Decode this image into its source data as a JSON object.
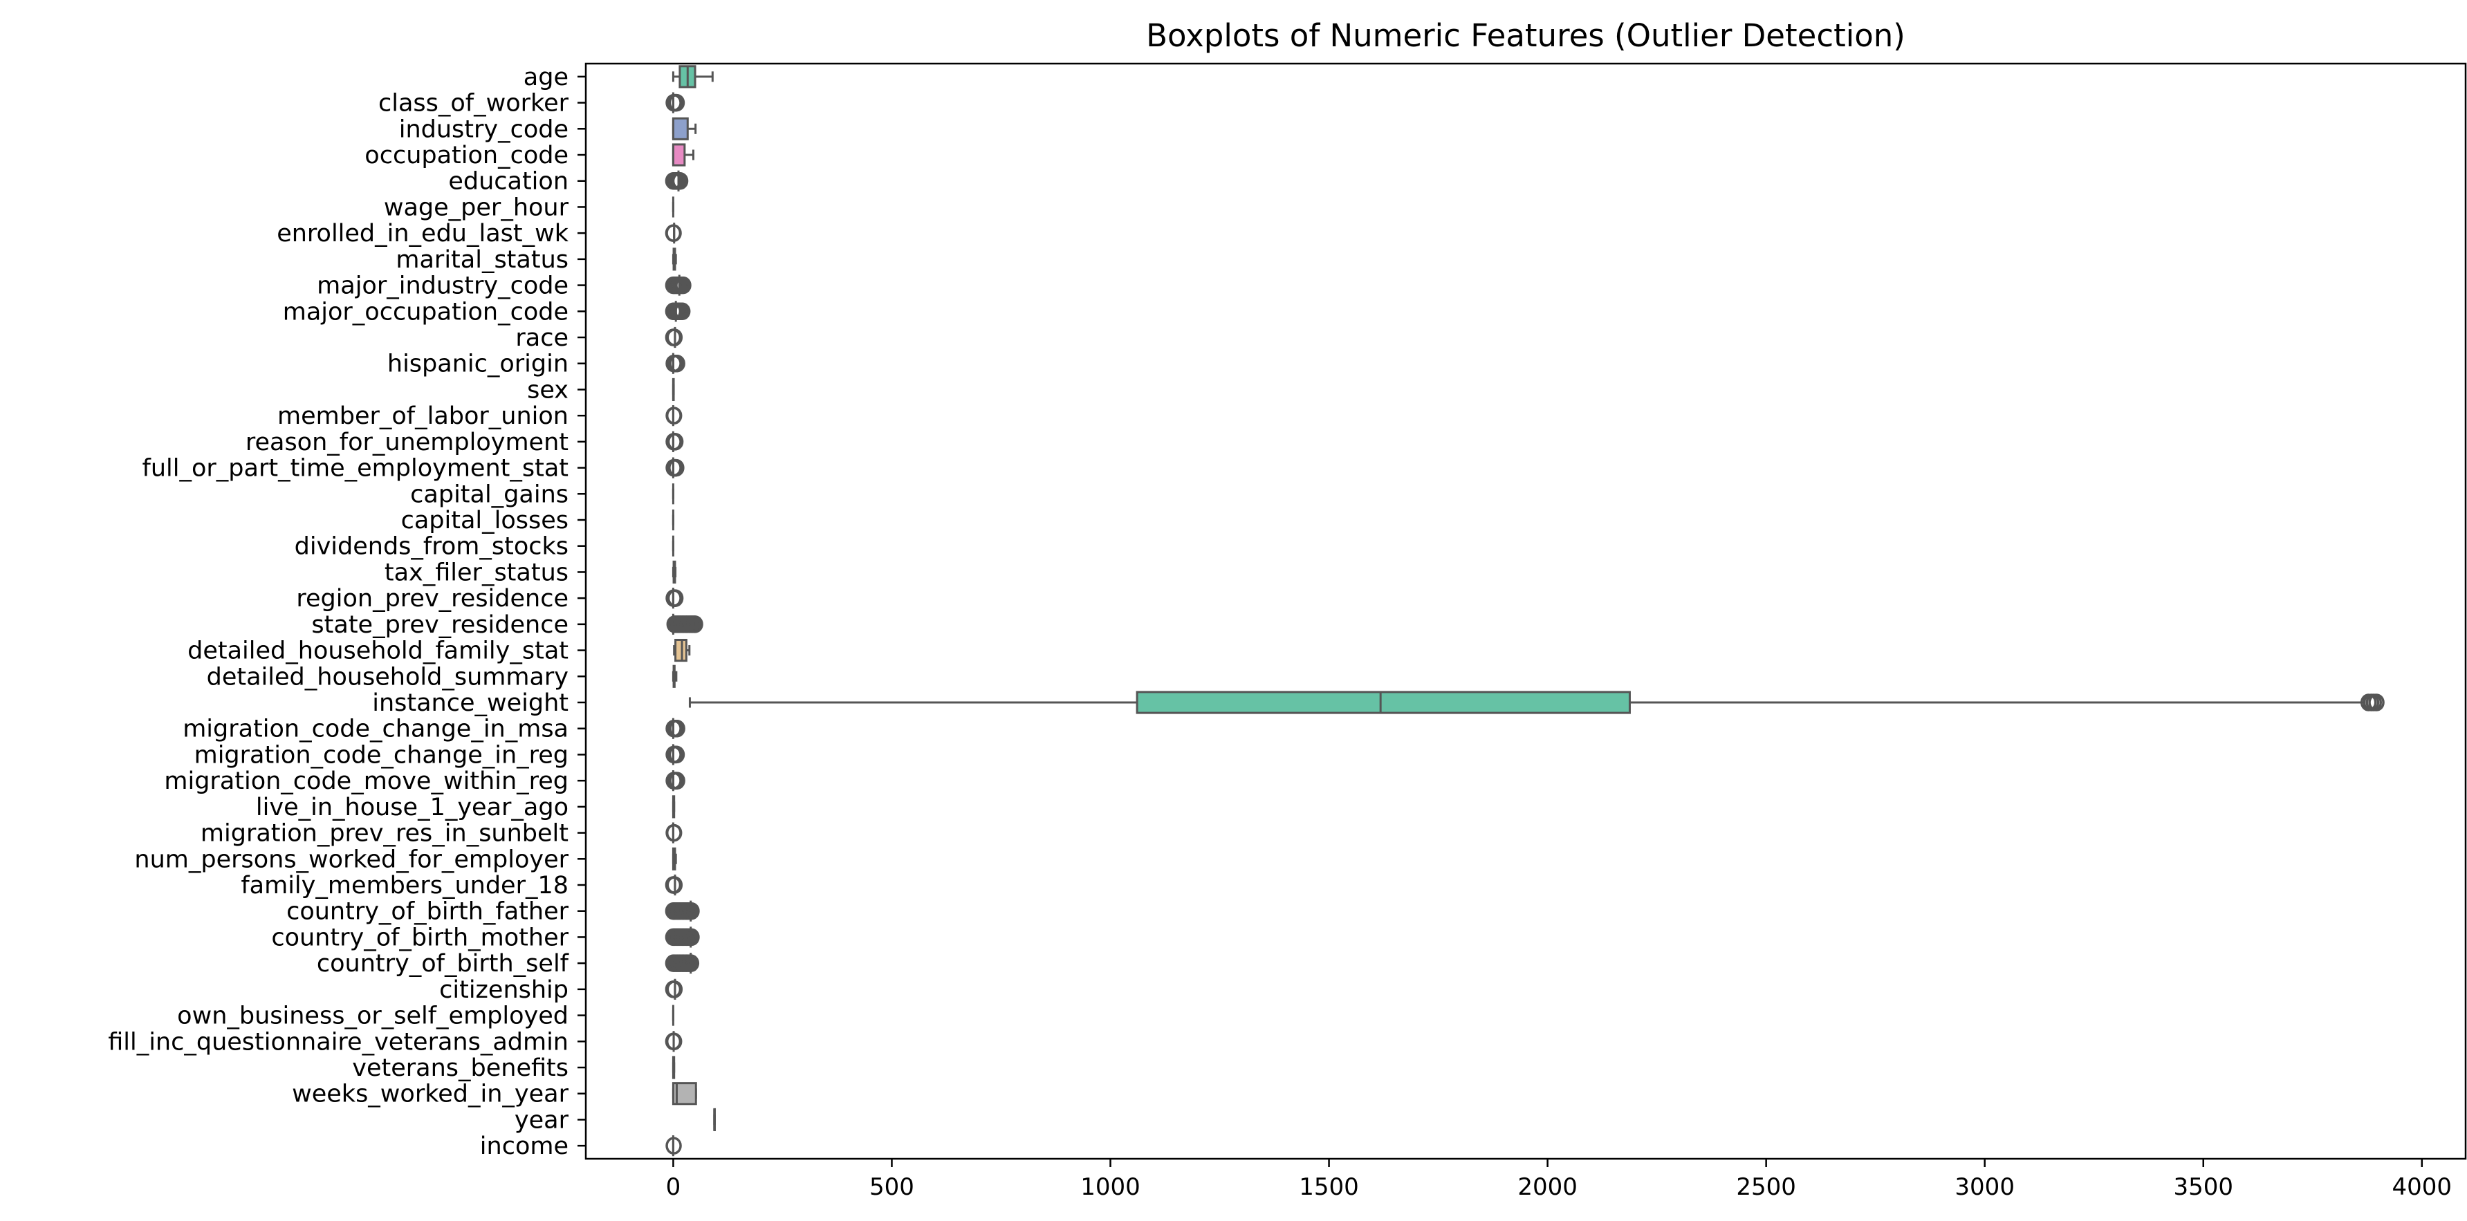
{
  "chart_data": {
    "type": "boxplot",
    "orientation": "horizontal",
    "title": "Boxplots of Numeric Features (Outlier Detection)",
    "xlabel": "",
    "ylabel": "",
    "xlim": [
      -200,
      4100
    ],
    "xticks": [
      0,
      500,
      1000,
      1500,
      2000,
      2500,
      3000,
      3500,
      4000
    ],
    "grid": false,
    "legend": "none",
    "palette": [
      "#66c2a5",
      "#fc8d62",
      "#8da0cb",
      "#e78ac3",
      "#a6d854",
      "#ffd92f",
      "#e5c494",
      "#b3b3b3"
    ],
    "outlier_color": "#555555",
    "series": [
      {
        "name": "age",
        "min": 0,
        "q1": 15,
        "median": 33,
        "q3": 50,
        "max": 90,
        "outliers": []
      },
      {
        "name": "class_of_worker",
        "min": 0,
        "q1": 0,
        "median": 0,
        "q3": 0,
        "max": 0,
        "outliers": [
          1,
          2,
          3,
          4,
          5,
          6,
          7,
          8
        ]
      },
      {
        "name": "industry_code",
        "min": 0,
        "q1": 0,
        "median": 0,
        "q3": 33,
        "max": 51,
        "outliers": []
      },
      {
        "name": "occupation_code",
        "min": 0,
        "q1": 0,
        "median": 0,
        "q3": 26,
        "max": 46,
        "outliers": []
      },
      {
        "name": "education",
        "min": 12,
        "q1": 12,
        "median": 12,
        "q3": 12,
        "max": 12,
        "outliers": [
          0,
          2,
          4,
          6,
          8,
          10,
          14,
          16
        ]
      },
      {
        "name": "wage_per_hour",
        "min": 0,
        "q1": 0,
        "median": 0,
        "q3": 0,
        "max": 0,
        "outliers": []
      },
      {
        "name": "enrolled_in_edu_last_wk",
        "min": 2,
        "q1": 2,
        "median": 2,
        "q3": 2,
        "max": 2,
        "outliers": [
          0,
          1
        ]
      },
      {
        "name": "marital_status",
        "min": 0,
        "q1": 1,
        "median": 2,
        "q3": 4,
        "max": 6,
        "outliers": []
      },
      {
        "name": "major_industry_code",
        "min": 14,
        "q1": 14,
        "median": 14,
        "q3": 14,
        "max": 14,
        "outliers": [
          0,
          3,
          6,
          9,
          12,
          17,
          20,
          23
        ]
      },
      {
        "name": "major_occupation_code",
        "min": 6,
        "q1": 6,
        "median": 6,
        "q3": 6,
        "max": 6,
        "outliers": [
          0,
          2,
          4,
          9,
          12,
          15,
          18,
          21
        ]
      },
      {
        "name": "race",
        "min": 4,
        "q1": 4,
        "median": 4,
        "q3": 4,
        "max": 4,
        "outliers": [
          0,
          1,
          2,
          3
        ]
      },
      {
        "name": "hispanic_origin",
        "min": 0,
        "q1": 0,
        "median": 0,
        "q3": 0,
        "max": 0,
        "outliers": [
          1,
          2,
          3,
          4,
          5,
          6,
          7,
          8,
          9
        ]
      },
      {
        "name": "sex",
        "min": 0,
        "q1": 0,
        "median": 0,
        "q3": 1,
        "max": 1,
        "outliers": []
      },
      {
        "name": "member_of_labor_union",
        "min": 0,
        "q1": 0,
        "median": 0,
        "q3": 0,
        "max": 0,
        "outliers": [
          1,
          2
        ]
      },
      {
        "name": "reason_for_unemployment",
        "min": 0,
        "q1": 0,
        "median": 0,
        "q3": 0,
        "max": 0,
        "outliers": [
          1,
          2,
          3,
          4,
          5
        ]
      },
      {
        "name": "full_or_part_time_employment_stat",
        "min": 0,
        "q1": 0,
        "median": 0,
        "q3": 0,
        "max": 0,
        "outliers": [
          1,
          2,
          3,
          4,
          5,
          6,
          7
        ]
      },
      {
        "name": "capital_gains",
        "min": 0,
        "q1": 0,
        "median": 0,
        "q3": 0,
        "max": 0,
        "outliers": []
      },
      {
        "name": "capital_losses",
        "min": 0,
        "q1": 0,
        "median": 0,
        "q3": 0,
        "max": 0,
        "outliers": []
      },
      {
        "name": "dividends_from_stocks",
        "min": 0,
        "q1": 0,
        "median": 0,
        "q3": 0,
        "max": 0,
        "outliers": []
      },
      {
        "name": "tax_filer_status",
        "min": 0,
        "q1": 1,
        "median": 2,
        "q3": 4,
        "max": 5,
        "outliers": []
      },
      {
        "name": "region_prev_residence",
        "min": 0,
        "q1": 0,
        "median": 0,
        "q3": 0,
        "max": 0,
        "outliers": [
          1,
          2,
          3,
          4,
          5
        ]
      },
      {
        "name": "state_prev_residence",
        "min": 0,
        "q1": 0,
        "median": 0,
        "q3": 0,
        "max": 0,
        "outliers": [
          3,
          6,
          9,
          12,
          15,
          18,
          21,
          24,
          27,
          30,
          33,
          36,
          39,
          42,
          45,
          48,
          50
        ]
      },
      {
        "name": "detailed_household_family_stat",
        "min": 2,
        "q1": 5,
        "median": 20,
        "q3": 30,
        "max": 37,
        "outliers": []
      },
      {
        "name": "detailed_household_summary",
        "min": 0,
        "q1": 1,
        "median": 2,
        "q3": 3,
        "max": 7,
        "outliers": []
      },
      {
        "name": "instance_weight",
        "min": 38,
        "q1": 1061,
        "median": 1618,
        "q3": 2188,
        "max": 3868,
        "outliers": [
          3878,
          3884,
          3890,
          3896
        ]
      },
      {
        "name": "migration_code_change_in_msa",
        "min": 0,
        "q1": 0,
        "median": 0,
        "q3": 0,
        "max": 0,
        "outliers": [
          1,
          2,
          3,
          4,
          5,
          6,
          7,
          8,
          9
        ]
      },
      {
        "name": "migration_code_change_in_reg",
        "min": 0,
        "q1": 0,
        "median": 0,
        "q3": 0,
        "max": 0,
        "outliers": [
          1,
          2,
          3,
          4,
          5,
          6,
          7,
          8
        ]
      },
      {
        "name": "migration_code_move_within_reg",
        "min": 0,
        "q1": 0,
        "median": 0,
        "q3": 0,
        "max": 0,
        "outliers": [
          1,
          2,
          3,
          4,
          5,
          6,
          7,
          8,
          9
        ]
      },
      {
        "name": "live_in_house_1_year_ago",
        "min": 0,
        "q1": 0,
        "median": 1,
        "q3": 2,
        "max": 2,
        "outliers": []
      },
      {
        "name": "migration_prev_res_in_sunbelt",
        "min": 0,
        "q1": 0,
        "median": 0,
        "q3": 0,
        "max": 0,
        "outliers": [
          1,
          2
        ]
      },
      {
        "name": "num_persons_worked_for_employer",
        "min": 0,
        "q1": 0,
        "median": 1,
        "q3": 4,
        "max": 6,
        "outliers": []
      },
      {
        "name": "family_members_under_18",
        "min": 4,
        "q1": 4,
        "median": 4,
        "q3": 4,
        "max": 4,
        "outliers": [
          0,
          1,
          2,
          3
        ]
      },
      {
        "name": "country_of_birth_father",
        "min": 40,
        "q1": 40,
        "median": 40,
        "q3": 40,
        "max": 40,
        "outliers": [
          0,
          3,
          6,
          9,
          12,
          15,
          18,
          21,
          24,
          27,
          30,
          33,
          36,
          39,
          42
        ]
      },
      {
        "name": "country_of_birth_mother",
        "min": 40,
        "q1": 40,
        "median": 40,
        "q3": 40,
        "max": 40,
        "outliers": [
          0,
          3,
          6,
          9,
          12,
          15,
          18,
          21,
          24,
          27,
          30,
          33,
          36,
          39,
          42
        ]
      },
      {
        "name": "country_of_birth_self",
        "min": 40,
        "q1": 40,
        "median": 40,
        "q3": 40,
        "max": 40,
        "outliers": [
          0,
          3,
          6,
          9,
          12,
          15,
          18,
          21,
          24,
          27,
          30,
          33,
          36,
          39,
          41
        ]
      },
      {
        "name": "citizenship",
        "min": 4,
        "q1": 4,
        "median": 4,
        "q3": 4,
        "max": 4,
        "outliers": [
          0,
          1,
          2,
          3
        ]
      },
      {
        "name": "own_business_or_self_employed",
        "min": 0,
        "q1": 0,
        "median": 0,
        "q3": 0,
        "max": 0,
        "outliers": []
      },
      {
        "name": "fill_inc_questionnaire_veterans_admin",
        "min": 1,
        "q1": 1,
        "median": 1,
        "q3": 1,
        "max": 1,
        "outliers": [
          0,
          2
        ]
      },
      {
        "name": "veterans_benefits",
        "min": 0,
        "q1": 0,
        "median": 1,
        "q3": 2,
        "max": 2,
        "outliers": []
      },
      {
        "name": "weeks_worked_in_year",
        "min": 0,
        "q1": 0,
        "median": 8,
        "q3": 52,
        "max": 52,
        "outliers": []
      },
      {
        "name": "year",
        "min": 94,
        "q1": 94,
        "median": 94,
        "q3": 95,
        "max": 95,
        "outliers": []
      },
      {
        "name": "income",
        "min": 0,
        "q1": 0,
        "median": 0,
        "q3": 0,
        "max": 0,
        "outliers": [
          1
        ]
      }
    ]
  }
}
